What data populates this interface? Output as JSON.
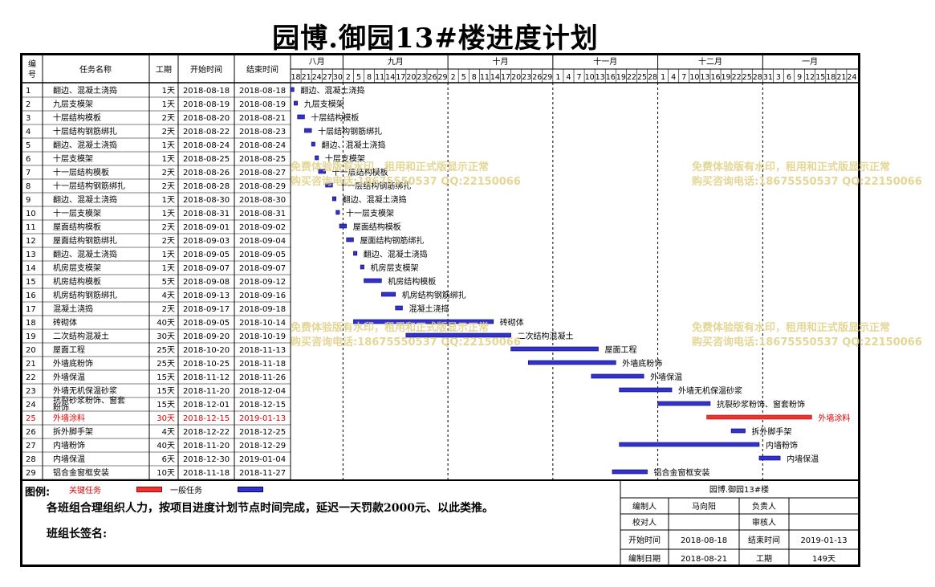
{
  "title": "园博.御园13#楼进度计划",
  "headers": {
    "id": "编号",
    "name": "任务名称",
    "duration": "工期",
    "start": "开始时间",
    "end": "结束时间"
  },
  "months": [
    {
      "label": "八月",
      "days": [
        "18",
        "21",
        "24",
        "27",
        "30"
      ]
    },
    {
      "label": "九月",
      "days": [
        "2",
        "5",
        "8",
        "11",
        "14",
        "17",
        "20",
        "23",
        "26",
        "29"
      ]
    },
    {
      "label": "十月",
      "days": [
        "2",
        "5",
        "8",
        "11",
        "14",
        "17",
        "20",
        "23",
        "26",
        "29"
      ]
    },
    {
      "label": "十一月",
      "days": [
        "1",
        "4",
        "7",
        "10",
        "13",
        "16",
        "19",
        "22",
        "25",
        "28"
      ]
    },
    {
      "label": "十二月",
      "days": [
        "1",
        "4",
        "7",
        "10",
        "13",
        "16",
        "19",
        "22",
        "25",
        "28"
      ]
    },
    {
      "label": "一月",
      "days": [
        "31",
        "3",
        "6",
        "9",
        "12",
        "15",
        "18",
        "21",
        "24"
      ]
    }
  ],
  "tasks": [
    {
      "id": "1",
      "name": "翻边、混凝土浇捣",
      "duration": "1天",
      "start": "2018-08-18",
      "end": "2018-08-18",
      "critical": false
    },
    {
      "id": "2",
      "name": "九层支模架",
      "duration": "1天",
      "start": "2018-08-19",
      "end": "2018-08-19",
      "critical": false
    },
    {
      "id": "3",
      "name": "十层结构模板",
      "duration": "2天",
      "start": "2018-08-20",
      "end": "2018-08-21",
      "critical": false
    },
    {
      "id": "4",
      "name": "十层结构钢筋绑扎",
      "duration": "2天",
      "start": "2018-08-22",
      "end": "2018-08-23",
      "critical": false
    },
    {
      "id": "5",
      "name": "翻边、混凝土浇捣",
      "duration": "1天",
      "start": "2018-08-24",
      "end": "2018-08-24",
      "critical": false
    },
    {
      "id": "6",
      "name": "十层支模架",
      "duration": "1天",
      "start": "2018-08-25",
      "end": "2018-08-25",
      "critical": false
    },
    {
      "id": "7",
      "name": "十一层结构模板",
      "duration": "2天",
      "start": "2018-08-26",
      "end": "2018-08-27",
      "critical": false
    },
    {
      "id": "8",
      "name": "十一层结构钢筋绑扎",
      "duration": "2天",
      "start": "2018-08-28",
      "end": "2018-08-29",
      "critical": false
    },
    {
      "id": "9",
      "name": "翻边、混凝土浇捣",
      "duration": "1天",
      "start": "2018-08-30",
      "end": "2018-08-30",
      "critical": false
    },
    {
      "id": "10",
      "name": "十一层支模架",
      "duration": "1天",
      "start": "2018-08-31",
      "end": "2018-08-31",
      "critical": false
    },
    {
      "id": "11",
      "name": "屋面结构模板",
      "duration": "2天",
      "start": "2018-09-01",
      "end": "2018-09-02",
      "critical": false
    },
    {
      "id": "12",
      "name": "屋面结构钢筋绑扎",
      "duration": "2天",
      "start": "2018-09-03",
      "end": "2018-09-04",
      "critical": false
    },
    {
      "id": "13",
      "name": "翻边、混凝土浇捣",
      "duration": "1天",
      "start": "2018-09-05",
      "end": "2018-09-05",
      "critical": false
    },
    {
      "id": "14",
      "name": "机房层支模架",
      "duration": "1天",
      "start": "2018-09-07",
      "end": "2018-09-07",
      "critical": false
    },
    {
      "id": "15",
      "name": "机房结构模板",
      "duration": "5天",
      "start": "2018-09-08",
      "end": "2018-09-12",
      "critical": false
    },
    {
      "id": "16",
      "name": "机房结构钢筋绑扎",
      "duration": "4天",
      "start": "2018-09-13",
      "end": "2018-09-16",
      "critical": false
    },
    {
      "id": "17",
      "name": "混凝土浇捣",
      "duration": "2天",
      "start": "2018-09-17",
      "end": "2018-09-18",
      "critical": false
    },
    {
      "id": "18",
      "name": "砖砌体",
      "duration": "40天",
      "start": "2018-09-05",
      "end": "2018-10-14",
      "critical": false
    },
    {
      "id": "19",
      "name": "二次结构混凝土",
      "duration": "30天",
      "start": "2018-09-20",
      "end": "2018-10-19",
      "critical": false
    },
    {
      "id": "20",
      "name": "屋面工程",
      "duration": "25天",
      "start": "2018-10-20",
      "end": "2018-11-13",
      "critical": false
    },
    {
      "id": "21",
      "name": "外墙底粉饰",
      "duration": "25天",
      "start": "2018-10-25",
      "end": "2018-11-18",
      "critical": false
    },
    {
      "id": "22",
      "name": "外墙保温",
      "duration": "15天",
      "start": "2018-11-12",
      "end": "2018-11-26",
      "critical": false
    },
    {
      "id": "23",
      "name": "外墙无机保温砂浆",
      "duration": "15天",
      "start": "2018-11-20",
      "end": "2018-12-04",
      "critical": false
    },
    {
      "id": "24",
      "name": "抗裂砂浆粉饰、窗套粉饰",
      "duration": "15天",
      "start": "2018-12-01",
      "end": "2018-12-15",
      "critical": false
    },
    {
      "id": "25",
      "name": "外墙涂料",
      "duration": "30天",
      "start": "2018-12-15",
      "end": "2019-01-13",
      "critical": true
    },
    {
      "id": "26",
      "name": "拆外脚手架",
      "duration": "4天",
      "start": "2018-12-22",
      "end": "2018-12-25",
      "critical": false
    },
    {
      "id": "27",
      "name": "内墙粉饰",
      "duration": "40天",
      "start": "2018-11-20",
      "end": "2018-12-29",
      "critical": false
    },
    {
      "id": "28",
      "name": "内墙保温",
      "duration": "6天",
      "start": "2018-12-30",
      "end": "2019-01-04",
      "critical": false
    },
    {
      "id": "29",
      "name": "铝合金窗框安装",
      "duration": "10天",
      "start": "2018-11-18",
      "end": "2018-11-27",
      "critical": false
    }
  ],
  "legend": {
    "label": "图例:",
    "critical": "关键任务",
    "normal": "一般任务"
  },
  "note": "各班组合理组织人力，按项目进度计划节点时间完成，延迟一天罚款2000元、以此类推。",
  "sign": "班组长签名:",
  "info": {
    "project": "园博.御园13#楼",
    "editor_label": "编制人",
    "editor": "马向阳",
    "owner_label": "负责人",
    "owner": "",
    "checker_label": "校对人",
    "checker": "",
    "reviewer_label": "审核人",
    "reviewer": "",
    "start_label": "开始时间",
    "start": "2018-08-18",
    "end_label": "结束时间",
    "end": "2019-01-13",
    "date_label": "编制日期",
    "date": "2018-08-21",
    "duration_label": "工期",
    "duration": "149天"
  },
  "watermark": {
    "line1": "免费体验版有水印，租用和正式版显示正常",
    "line2": "购买咨询电话:18675550537 QQ:22150066"
  },
  "colors": {
    "normal_bar": "#3333cc",
    "critical_bar": "#ee3333",
    "critical_text": "#e00000"
  }
}
